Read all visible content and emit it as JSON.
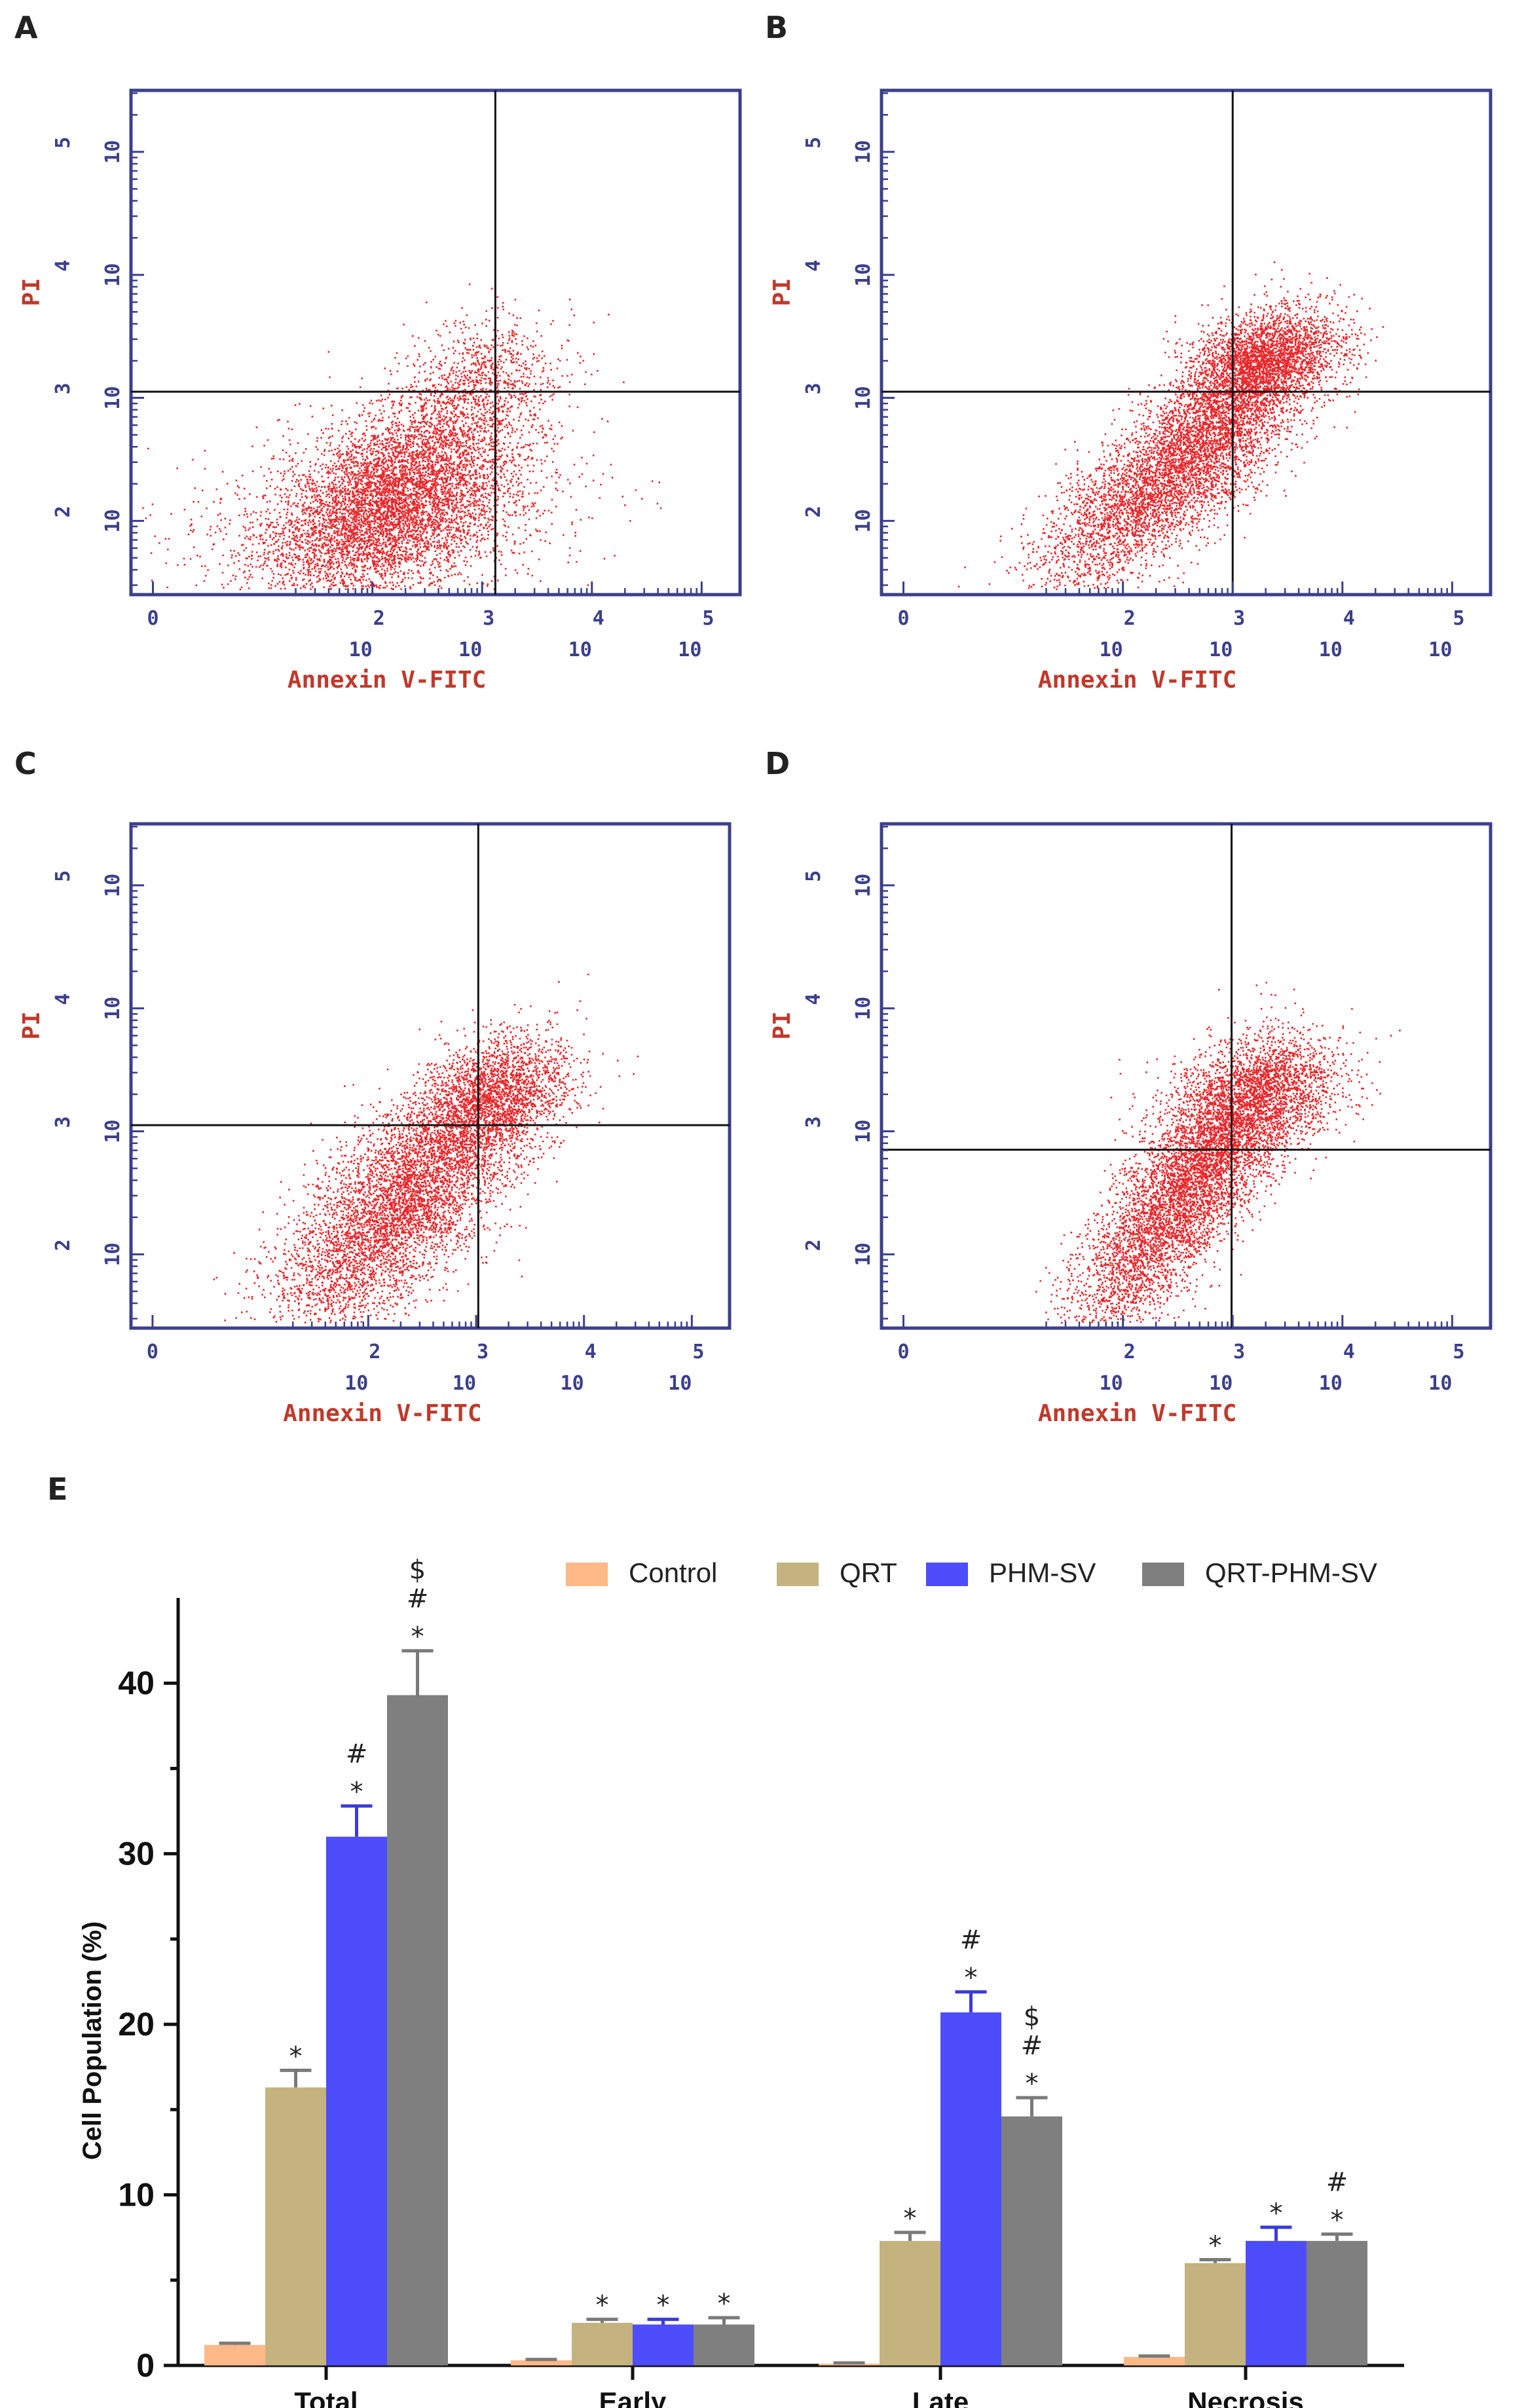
{
  "flow_panels": [
    {
      "letter": "A",
      "y_label": "PI",
      "x_label": "Annexin V-FITC",
      "x_ticks": [
        {
          "base": "10",
          "exp": "0"
        },
        {
          "base": "10",
          "exp": "2"
        },
        {
          "base": "10",
          "exp": "3"
        },
        {
          "base": "10",
          "exp": "4"
        },
        {
          "base": "10",
          "exp": "5"
        }
      ],
      "y_ticks": [
        {
          "base": "10",
          "exp": "2"
        },
        {
          "base": "10",
          "exp": "3"
        },
        {
          "base": "10",
          "exp": "4"
        },
        {
          "base": "10",
          "exp": "5"
        }
      ],
      "gate_x": 3.12,
      "gate_y": 3.05
    },
    {
      "letter": "B",
      "y_label": "PI",
      "x_label": "Annexin V-FITC",
      "x_ticks": [
        {
          "base": "10",
          "exp": "0"
        },
        {
          "base": "10",
          "exp": "2"
        },
        {
          "base": "10",
          "exp": "3"
        },
        {
          "base": "10",
          "exp": "4"
        },
        {
          "base": "10",
          "exp": "5"
        }
      ],
      "y_ticks": [
        {
          "base": "10",
          "exp": "2"
        },
        {
          "base": "10",
          "exp": "3"
        },
        {
          "base": "10",
          "exp": "4"
        },
        {
          "base": "10",
          "exp": "5"
        }
      ],
      "gate_x": 3.0,
      "gate_y": 3.05
    },
    {
      "letter": "C",
      "y_label": "PI",
      "x_label": "Annexin V-FITC",
      "x_ticks": [
        {
          "base": "10",
          "exp": "0"
        },
        {
          "base": "10",
          "exp": "2"
        },
        {
          "base": "10",
          "exp": "3"
        },
        {
          "base": "10",
          "exp": "4"
        },
        {
          "base": "10",
          "exp": "5"
        }
      ],
      "y_ticks": [
        {
          "base": "10",
          "exp": "2"
        },
        {
          "base": "10",
          "exp": "3"
        },
        {
          "base": "10",
          "exp": "4"
        },
        {
          "base": "10",
          "exp": "5"
        }
      ],
      "gate_x": 3.02,
      "gate_y": 3.05
    },
    {
      "letter": "D",
      "y_label": "PI",
      "x_label": "Annexin V-FITC",
      "x_ticks": [
        {
          "base": "10",
          "exp": "0"
        },
        {
          "base": "10",
          "exp": "2"
        },
        {
          "base": "10",
          "exp": "3"
        },
        {
          "base": "10",
          "exp": "4"
        },
        {
          "base": "10",
          "exp": "5"
        }
      ],
      "y_ticks": [
        {
          "base": "10",
          "exp": "2"
        },
        {
          "base": "10",
          "exp": "3"
        },
        {
          "base": "10",
          "exp": "4"
        },
        {
          "base": "10",
          "exp": "5"
        }
      ],
      "gate_x": 2.99,
      "gate_y": 2.85
    }
  ],
  "chart_data": {
    "letter": "E",
    "type": "bar",
    "title": "",
    "xlabel": "",
    "ylabel": "Cell Population (%)",
    "ylim": [
      0,
      45
    ],
    "yticks": [
      0,
      10,
      20,
      30,
      40
    ],
    "categories": [
      "Total",
      "Early",
      "Late",
      "Necrosis"
    ],
    "series": [
      {
        "name": "Control",
        "color": "#ffb887",
        "values": [
          1.2,
          0.3,
          0.1,
          0.5
        ],
        "errors": [
          0.1,
          0.05,
          0.05,
          0.05
        ],
        "sig": [
          "",
          "",
          "",
          ""
        ]
      },
      {
        "name": "QRT",
        "color": "#c4b37f",
        "values": [
          16.3,
          2.5,
          7.3,
          6.0
        ],
        "errors": [
          1.0,
          0.2,
          0.5,
          0.2
        ],
        "sig": [
          "*",
          "*",
          "*",
          "*"
        ]
      },
      {
        "name": "PHM-SV",
        "color": "#4d4dfb",
        "values": [
          31.0,
          2.4,
          20.7,
          7.3
        ],
        "errors": [
          1.8,
          0.3,
          1.2,
          0.8
        ],
        "sig": [
          "#\n*",
          "*",
          "#\n*",
          "*"
        ]
      },
      {
        "name": "QRT-PHM-SV",
        "color": "#7f7f7f",
        "values": [
          39.3,
          2.4,
          14.6,
          7.3
        ],
        "errors": [
          2.6,
          0.4,
          1.1,
          0.4
        ],
        "sig": [
          "$\n#\n*",
          "*",
          "$\n#\n*",
          "#\n*"
        ]
      }
    ],
    "legend_position": "top-right"
  }
}
